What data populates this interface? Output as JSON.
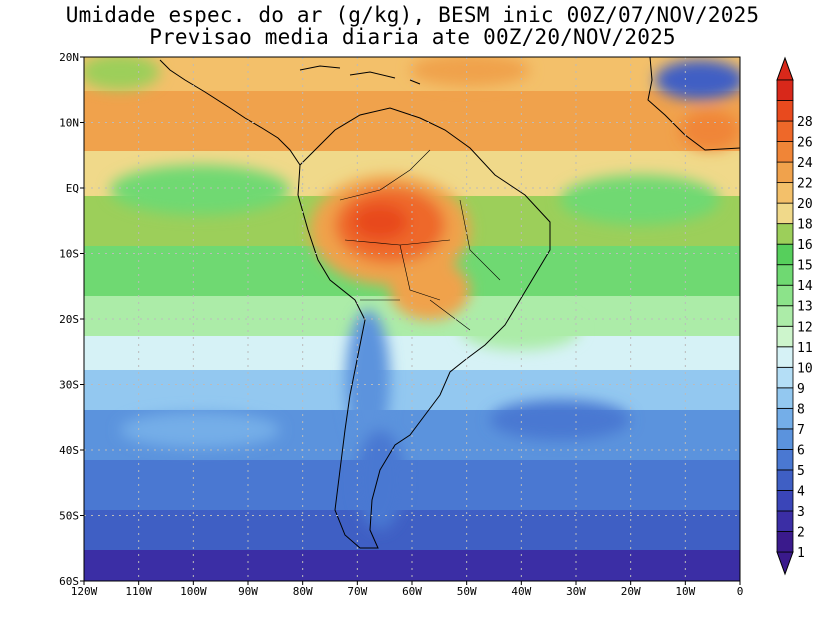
{
  "title": {
    "line1": "Umidade espec. do ar (g/kg), BESM inic 00Z/07/NOV/2025",
    "line2": "Previsao media diaria ate 00Z/20/NOV/2025"
  },
  "axes": {
    "lat_labels": [
      "20N",
      "10N",
      "EQ",
      "10S",
      "20S",
      "30S",
      "40S",
      "50S",
      "60S"
    ],
    "lon_labels": [
      "120W",
      "110W",
      "100W",
      "90W",
      "80W",
      "70W",
      "60W",
      "50W",
      "40W",
      "30W",
      "20W",
      "10W",
      "0"
    ],
    "lat_range": [
      -60,
      20
    ],
    "lon_range": [
      -120,
      0
    ]
  },
  "colorbar": {
    "labels": [
      "1",
      "2",
      "3",
      "4",
      "5",
      "6",
      "7",
      "8",
      "9",
      "10",
      "11",
      "12",
      "13",
      "14",
      "15",
      "16",
      "18",
      "20",
      "22",
      "24",
      "26",
      "28"
    ],
    "colors": [
      "#3a1a8c",
      "#3b2ea5",
      "#3a45b8",
      "#3f5fc4",
      "#4a78d2",
      "#5b93dd",
      "#74aee8",
      "#93c8f0",
      "#b4def6",
      "#d6f2f6",
      "#cdf5cc",
      "#aceca8",
      "#8ce38a",
      "#6fd972",
      "#56cf5c",
      "#9ccf5a",
      "#f0d98a",
      "#f3c06a",
      "#f0a24c",
      "#f08537",
      "#ee6829",
      "#e84a1e",
      "#d8281a"
    ],
    "underflow_color": "#3a1a8c",
    "overflow_color": "#d8281a"
  }
}
